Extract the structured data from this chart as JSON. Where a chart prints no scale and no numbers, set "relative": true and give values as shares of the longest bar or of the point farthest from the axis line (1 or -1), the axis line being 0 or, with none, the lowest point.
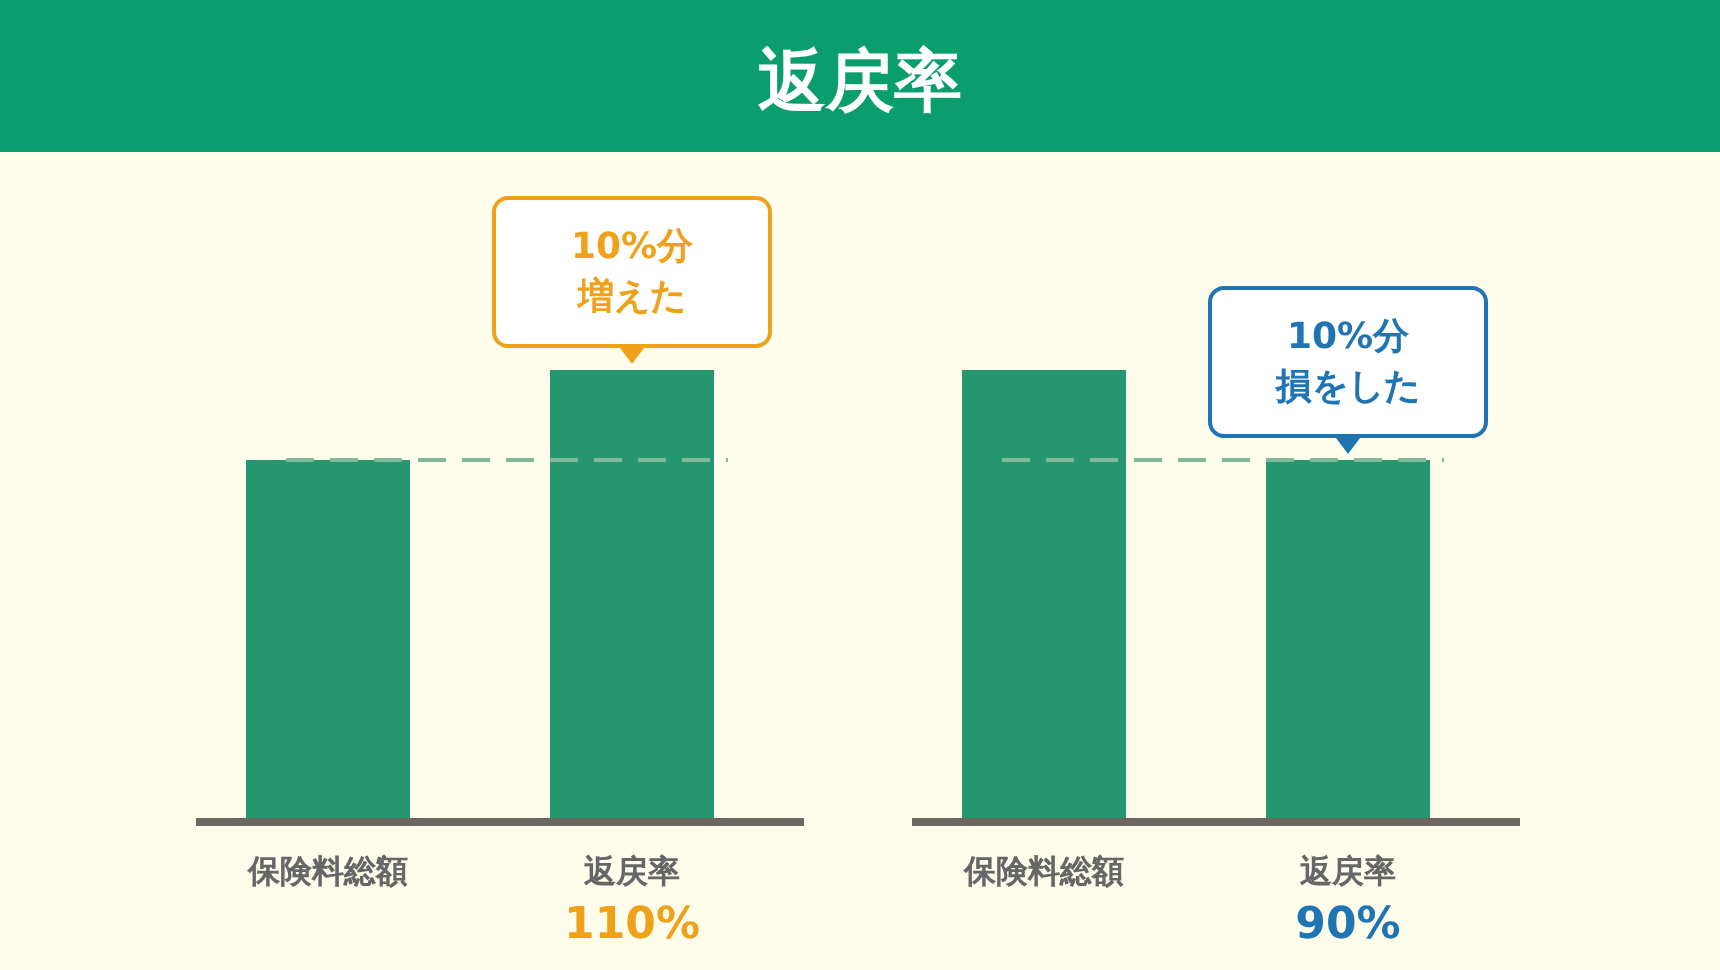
{
  "chart_data": [
    {
      "type": "bar",
      "title": "返戻率",
      "relative": true,
      "categories": [
        "保険料総額",
        "返戻率"
      ],
      "values": [
        0.8,
        1
      ],
      "color": "#25966f",
      "ref_lines": [
        {
          "axis": "y",
          "value": 0.8,
          "color": "#7fb99a",
          "line_style": "dashed"
        }
      ],
      "annotations": [
        {
          "text": "10%分増えた",
          "x": "返戻率",
          "y": 1
        },
        "110%"
      ]
    },
    {
      "type": "bar",
      "relative": true,
      "categories": [
        "保険料総額",
        "返戻率"
      ],
      "values": [
        1,
        0.8
      ],
      "color": "#25966f",
      "ref_lines": [
        {
          "axis": "y",
          "value": 0.8,
          "color": "#7fb99a",
          "line_style": "dashed"
        }
      ],
      "annotations": [
        {
          "text": "10%分損をした",
          "x": "返戻率",
          "y": 0.8
        },
        "90%"
      ]
    }
  ]
}
